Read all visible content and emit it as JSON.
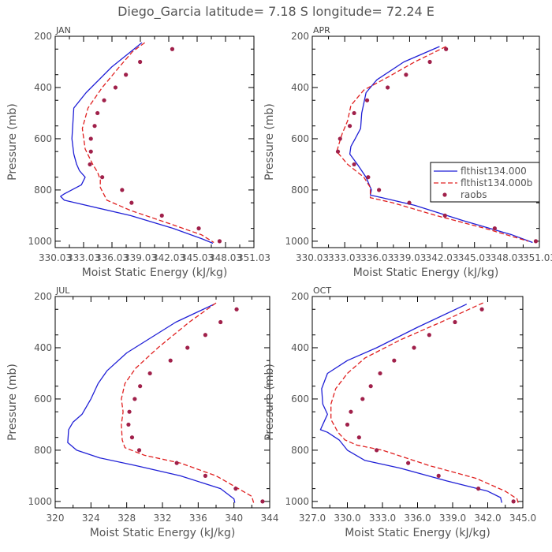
{
  "title": "Diego_Garcia  latitude= 7.18 S longitude= 72.24 E",
  "colors": {
    "model1": "#1f1fd6",
    "model2": "#e02020",
    "obs": "#a0204a",
    "text": "#555555"
  },
  "chart_data": [
    {
      "type": "line",
      "month": "JAN",
      "xlabel": "Moist Static Energy (kJ/kg)",
      "ylabel": "Pressure (mb)",
      "xlim": [
        330.03,
        351.03
      ],
      "ylim": [
        1025,
        200
      ],
      "xtick_labels": [
        "330.03",
        "333.03",
        "336.03",
        "339.03",
        "342.03",
        "345.03",
        "348.03",
        "351.03"
      ],
      "yticks": [
        200,
        400,
        600,
        800,
        1000
      ],
      "series": [
        {
          "name": "flthist134.000",
          "style": "solid",
          "points": [
            [
              339.2,
              225
            ],
            [
              336.0,
              320
            ],
            [
              333.3,
              420
            ],
            [
              332.0,
              480
            ],
            [
              331.9,
              540
            ],
            [
              331.8,
              600
            ],
            [
              332.0,
              660
            ],
            [
              332.3,
              700
            ],
            [
              332.6,
              725
            ],
            [
              333.2,
              750
            ],
            [
              332.8,
              780
            ],
            [
              331.0,
              815
            ],
            [
              330.6,
              825
            ],
            [
              331.0,
              840
            ],
            [
              338.0,
              900
            ],
            [
              342.5,
              950
            ],
            [
              345.5,
              990
            ],
            [
              346.7,
              1008
            ]
          ]
        },
        {
          "name": "flthist134.000b",
          "style": "dashed",
          "points": [
            [
              339.5,
              225
            ],
            [
              338.2,
              260
            ],
            [
              336.8,
              320
            ],
            [
              335.0,
              400
            ],
            [
              333.5,
              480
            ],
            [
              332.9,
              560
            ],
            [
              333.2,
              640
            ],
            [
              334.0,
              700
            ],
            [
              334.5,
              730
            ],
            [
              334.8,
              760
            ],
            [
              334.8,
              790
            ],
            [
              335.5,
              840
            ],
            [
              338.0,
              880
            ],
            [
              342.0,
              930
            ],
            [
              345.5,
              975
            ],
            [
              346.8,
              1005
            ]
          ]
        },
        {
          "name": "raobs",
          "style": "dot",
          "points": [
            [
              342.4,
              250
            ],
            [
              339.0,
              300
            ],
            [
              337.5,
              350
            ],
            [
              336.4,
              400
            ],
            [
              335.2,
              450
            ],
            [
              334.5,
              500
            ],
            [
              334.2,
              550
            ],
            [
              333.8,
              600
            ],
            [
              333.8,
              650
            ],
            [
              333.7,
              700
            ],
            [
              335.0,
              750
            ],
            [
              337.1,
              800
            ],
            [
              338.1,
              850
            ],
            [
              341.3,
              900
            ],
            [
              345.2,
              950
            ],
            [
              347.4,
              1000
            ]
          ]
        }
      ]
    },
    {
      "type": "line",
      "month": "APR",
      "xlabel": "Moist Static Energy (kJ/kg)",
      "ylabel": "Pressure (mb)",
      "xlim": [
        330.03,
        351.03
      ],
      "ylim": [
        1025,
        200
      ],
      "xtick_labels": [
        "330.03",
        "333.03",
        "336.03",
        "339.03",
        "342.03",
        "345.03",
        "348.03",
        "351.03"
      ],
      "yticks": [
        200,
        400,
        600,
        800,
        1000
      ],
      "series": [
        {
          "name": "flthist134.000",
          "style": "solid",
          "points": [
            [
              341.8,
              240
            ],
            [
              338.5,
              300
            ],
            [
              336.0,
              370
            ],
            [
              335.0,
              420
            ],
            [
              334.6,
              500
            ],
            [
              334.5,
              560
            ],
            [
              334.0,
              600
            ],
            [
              333.6,
              630
            ],
            [
              333.5,
              660
            ],
            [
              334.2,
              700
            ],
            [
              335.0,
              750
            ],
            [
              335.5,
              800
            ],
            [
              335.4,
              820
            ],
            [
              336.5,
              830
            ],
            [
              339.5,
              860
            ],
            [
              344.0,
              920
            ],
            [
              348.5,
              975
            ],
            [
              350.4,
              1005
            ]
          ]
        },
        {
          "name": "flthist134.000b",
          "style": "dashed",
          "points": [
            [
              342.4,
              240
            ],
            [
              339.5,
              300
            ],
            [
              337.0,
              360
            ],
            [
              334.8,
              410
            ],
            [
              333.6,
              470
            ],
            [
              333.3,
              530
            ],
            [
              332.8,
              580
            ],
            [
              332.5,
              620
            ],
            [
              332.3,
              650
            ],
            [
              333.3,
              700
            ],
            [
              334.8,
              750
            ],
            [
              335.4,
              790
            ],
            [
              335.4,
              830
            ],
            [
              337.5,
              850
            ],
            [
              341.5,
              900
            ],
            [
              346.0,
              950
            ],
            [
              350.0,
              1000
            ]
          ]
        },
        {
          "name": "raobs",
          "style": "dot",
          "points": [
            [
              342.4,
              250
            ],
            [
              340.9,
              300
            ],
            [
              338.7,
              350
            ],
            [
              337.0,
              400
            ],
            [
              335.1,
              450
            ],
            [
              333.9,
              500
            ],
            [
              333.5,
              550
            ],
            [
              332.6,
              600
            ],
            [
              332.4,
              650
            ],
            [
              333.9,
              700
            ],
            [
              335.2,
              750
            ],
            [
              336.2,
              800
            ],
            [
              339.0,
              850
            ],
            [
              342.3,
              900
            ],
            [
              346.9,
              950
            ],
            [
              350.7,
              1000
            ]
          ]
        }
      ]
    },
    {
      "type": "line",
      "month": "JUL",
      "xlabel": "Moist Static Energy (kJ/kg)",
      "ylabel": "Pressure (mb)",
      "xlim": [
        320,
        344
      ],
      "ylim": [
        1025,
        200
      ],
      "xtick_labels": [
        "320",
        "324",
        "328",
        "332",
        "336",
        "340",
        "344"
      ],
      "yticks": [
        200,
        400,
        600,
        800,
        1000
      ],
      "series": [
        {
          "name": "flthist134.000",
          "style": "solid",
          "points": [
            [
              337.8,
              230
            ],
            [
              333.5,
              300
            ],
            [
              328.0,
              420
            ],
            [
              325.8,
              490
            ],
            [
              324.8,
              540
            ],
            [
              324.0,
              600
            ],
            [
              323.0,
              660
            ],
            [
              322.0,
              690
            ],
            [
              321.5,
              720
            ],
            [
              321.4,
              770
            ],
            [
              322.4,
              800
            ],
            [
              325.0,
              830
            ],
            [
              329.0,
              860
            ],
            [
              334.0,
              900
            ],
            [
              338.5,
              950
            ],
            [
              340.0,
              990
            ],
            [
              340.1,
              1005
            ]
          ]
        },
        {
          "name": "flthist134.000b",
          "style": "dashed",
          "points": [
            [
              338.0,
              225
            ],
            [
              335.0,
              300
            ],
            [
              331.5,
              400
            ],
            [
              329.0,
              480
            ],
            [
              327.8,
              540
            ],
            [
              327.4,
              600
            ],
            [
              327.6,
              650
            ],
            [
              327.4,
              700
            ],
            [
              327.5,
              760
            ],
            [
              327.8,
              790
            ],
            [
              330.0,
              820
            ],
            [
              334.0,
              850
            ],
            [
              338.0,
              900
            ],
            [
              340.5,
              950
            ],
            [
              342.0,
              980
            ],
            [
              342.2,
              1005
            ]
          ]
        },
        {
          "name": "raobs",
          "style": "dot",
          "points": [
            [
              340.3,
              250
            ],
            [
              338.5,
              300
            ],
            [
              336.8,
              350
            ],
            [
              334.8,
              400
            ],
            [
              332.9,
              450
            ],
            [
              330.6,
              500
            ],
            [
              329.5,
              550
            ],
            [
              328.9,
              600
            ],
            [
              328.3,
              650
            ],
            [
              328.2,
              700
            ],
            [
              328.6,
              750
            ],
            [
              329.4,
              800
            ],
            [
              333.6,
              850
            ],
            [
              336.8,
              900
            ],
            [
              340.2,
              950
            ],
            [
              343.2,
              1000
            ]
          ]
        }
      ]
    },
    {
      "type": "line",
      "month": "OCT",
      "xlabel": "Moist Static Energy (kJ/kg)",
      "ylabel": "Pressure (mb)",
      "xlim": [
        327.0,
        345.0
      ],
      "ylim": [
        1025,
        200
      ],
      "xtick_labels": [
        "327.0",
        "330.0",
        "333.0",
        "336.0",
        "339.0",
        "342.0",
        "345.0"
      ],
      "yticks": [
        200,
        400,
        600,
        800,
        1000
      ],
      "series": [
        {
          "name": "flthist134.000",
          "style": "solid",
          "points": [
            [
              340.2,
              230
            ],
            [
              336.0,
              320
            ],
            [
              332.5,
              400
            ],
            [
              330.0,
              450
            ],
            [
              328.3,
              500
            ],
            [
              327.8,
              560
            ],
            [
              327.9,
              620
            ],
            [
              328.3,
              660
            ],
            [
              328.0,
              690
            ],
            [
              327.7,
              720
            ],
            [
              328.3,
              730
            ],
            [
              329.3,
              760
            ],
            [
              330.0,
              800
            ],
            [
              331.5,
              840
            ],
            [
              334.5,
              870
            ],
            [
              338.5,
              920
            ],
            [
              342.0,
              960
            ],
            [
              343.1,
              985
            ],
            [
              343.2,
              1005
            ]
          ]
        },
        {
          "name": "flthist134.000b",
          "style": "dashed",
          "points": [
            [
              341.6,
              225
            ],
            [
              338.0,
              300
            ],
            [
              334.5,
              370
            ],
            [
              331.5,
              440
            ],
            [
              330.0,
              500
            ],
            [
              329.0,
              560
            ],
            [
              328.6,
              620
            ],
            [
              328.6,
              680
            ],
            [
              329.2,
              730
            ],
            [
              329.8,
              760
            ],
            [
              330.8,
              780
            ],
            [
              333.0,
              800
            ],
            [
              337.0,
              860
            ],
            [
              341.0,
              910
            ],
            [
              343.5,
              960
            ],
            [
              344.5,
              990
            ],
            [
              344.6,
              1005
            ]
          ]
        },
        {
          "name": "raobs",
          "style": "dot",
          "points": [
            [
              341.5,
              250
            ],
            [
              339.2,
              300
            ],
            [
              337.0,
              350
            ],
            [
              335.7,
              400
            ],
            [
              334.0,
              450
            ],
            [
              332.8,
              500
            ],
            [
              332.0,
              550
            ],
            [
              331.3,
              600
            ],
            [
              330.3,
              650
            ],
            [
              330.0,
              700
            ],
            [
              331.0,
              750
            ],
            [
              332.5,
              800
            ],
            [
              335.2,
              850
            ],
            [
              337.8,
              900
            ],
            [
              341.2,
              950
            ],
            [
              344.2,
              1000
            ]
          ]
        }
      ]
    }
  ],
  "legend": {
    "position": "right-middle of APR panel",
    "items": [
      {
        "name": "flthist134.000",
        "style": "solid"
      },
      {
        "name": "flthist134.000b",
        "style": "dashed"
      },
      {
        "name": "raobs",
        "style": "dot"
      }
    ]
  }
}
